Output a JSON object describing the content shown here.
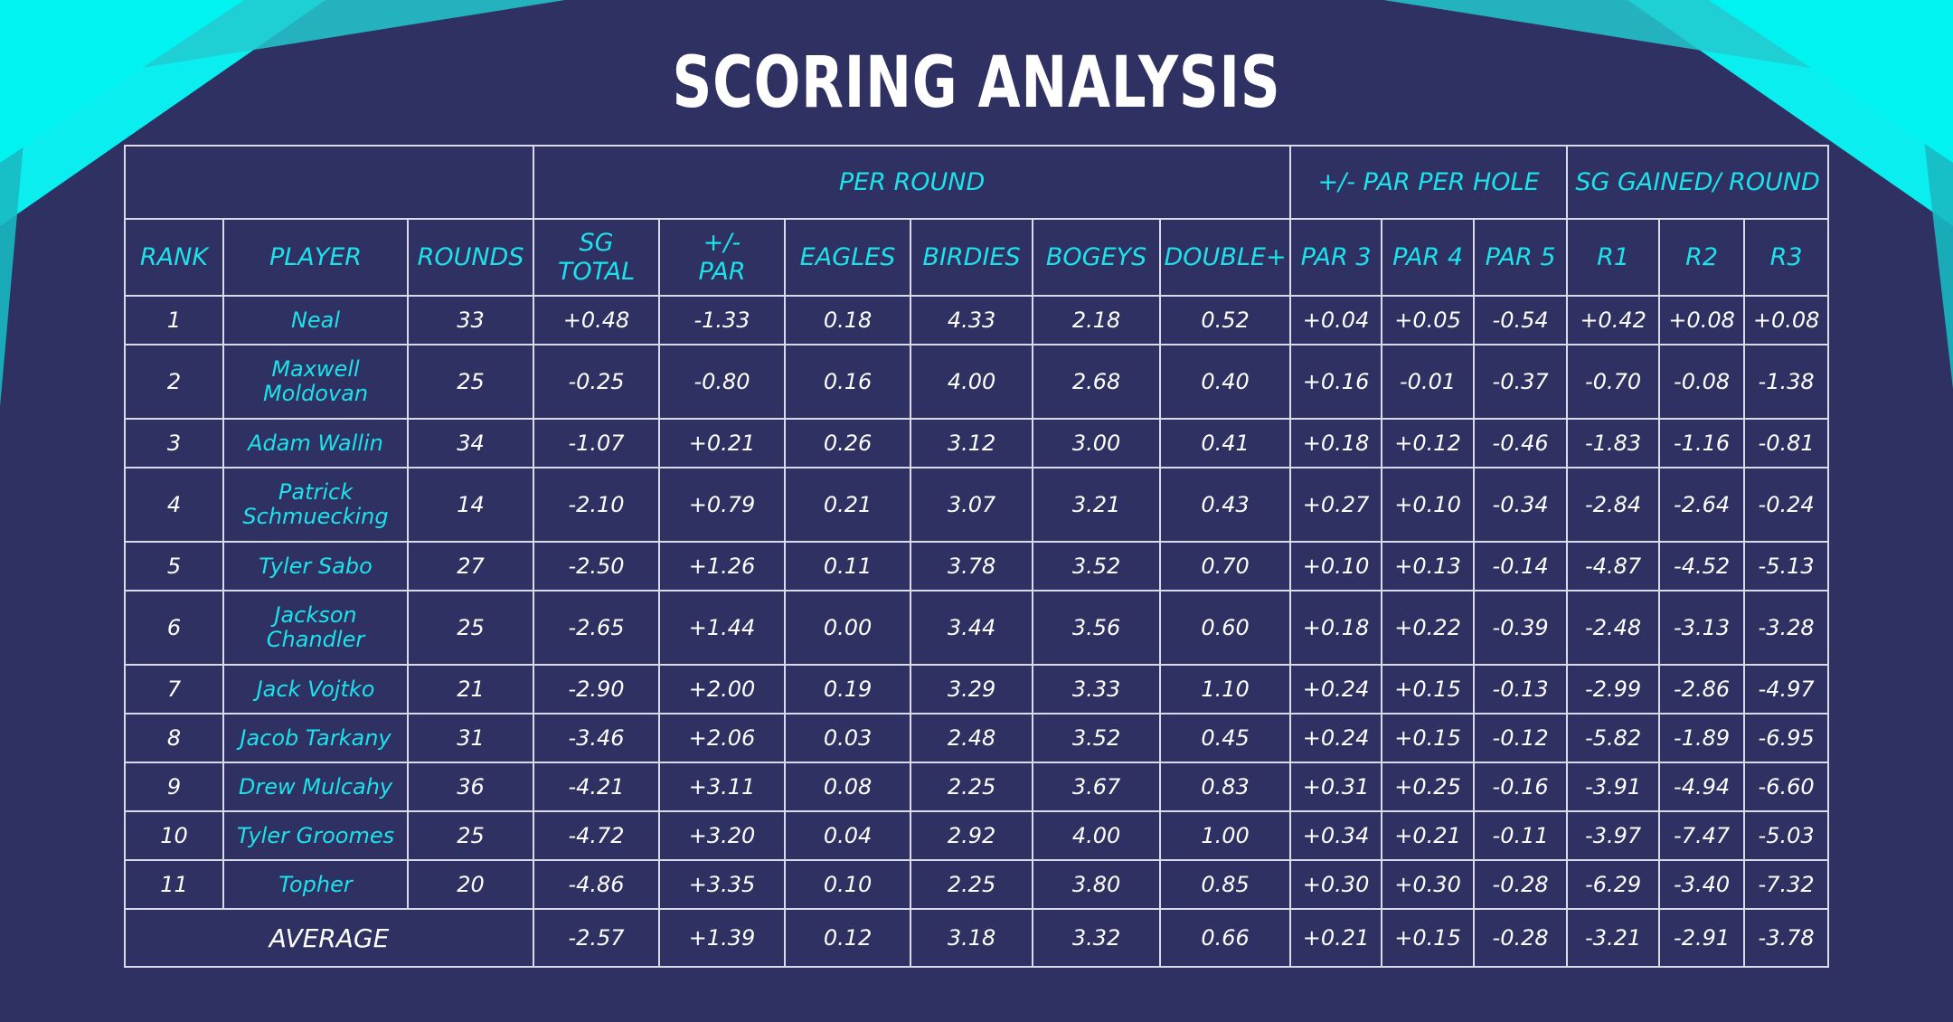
{
  "title": "SCORING ANALYSIS",
  "colors": {
    "background": "#2e3161",
    "accent": "#1ee1ec",
    "text": "#ffffff",
    "grid": "#d9dbe8"
  },
  "table": {
    "groups": {
      "per_round": "PER ROUND",
      "par_per_hole": "+/- PAR PER HOLE",
      "sg_gained_round": "SG GAINED/ ROUND"
    },
    "headers": {
      "rank": "RANK",
      "player": "PLAYER",
      "rounds": "ROUNDS",
      "sg_total_1": "SG",
      "sg_total_2": "TOTAL",
      "par_1": "+/-",
      "par_2": "PAR",
      "eagles": "EAGLES",
      "birdies": "BIRDIES",
      "bogeys": "BOGEYS",
      "double": "DOUBLE+",
      "par3": "PAR 3",
      "par4": "PAR 4",
      "par5": "PAR 5",
      "r1": "R1",
      "r2": "R2",
      "r3": "R3"
    },
    "rows": [
      {
        "rank": "1",
        "player": [
          "Neal"
        ],
        "rounds": "33",
        "sg_total": "+0.48",
        "par": "-1.33",
        "eagles": "0.18",
        "birdies": "4.33",
        "bogeys": "2.18",
        "double": "0.52",
        "par3": "+0.04",
        "par4": "+0.05",
        "par5": "-0.54",
        "r1": "+0.42",
        "r2": "+0.08",
        "r3": "+0.08"
      },
      {
        "rank": "2",
        "player": [
          "Maxwell",
          "Moldovan"
        ],
        "rounds": "25",
        "sg_total": "-0.25",
        "par": "-0.80",
        "eagles": "0.16",
        "birdies": "4.00",
        "bogeys": "2.68",
        "double": "0.40",
        "par3": "+0.16",
        "par4": "-0.01",
        "par5": "-0.37",
        "r1": "-0.70",
        "r2": "-0.08",
        "r3": "-1.38"
      },
      {
        "rank": "3",
        "player": [
          "Adam Wallin"
        ],
        "rounds": "34",
        "sg_total": "-1.07",
        "par": "+0.21",
        "eagles": "0.26",
        "birdies": "3.12",
        "bogeys": "3.00",
        "double": "0.41",
        "par3": "+0.18",
        "par4": "+0.12",
        "par5": "-0.46",
        "r1": "-1.83",
        "r2": "-1.16",
        "r3": "-0.81"
      },
      {
        "rank": "4",
        "player": [
          "Patrick",
          "Schmuecking"
        ],
        "rounds": "14",
        "sg_total": "-2.10",
        "par": "+0.79",
        "eagles": "0.21",
        "birdies": "3.07",
        "bogeys": "3.21",
        "double": "0.43",
        "par3": "+0.27",
        "par4": "+0.10",
        "par5": "-0.34",
        "r1": "-2.84",
        "r2": "-2.64",
        "r3": "-0.24"
      },
      {
        "rank": "5",
        "player": [
          "Tyler Sabo"
        ],
        "rounds": "27",
        "sg_total": "-2.50",
        "par": "+1.26",
        "eagles": "0.11",
        "birdies": "3.78",
        "bogeys": "3.52",
        "double": "0.70",
        "par3": "+0.10",
        "par4": "+0.13",
        "par5": "-0.14",
        "r1": "-4.87",
        "r2": "-4.52",
        "r3": "-5.13"
      },
      {
        "rank": "6",
        "player": [
          "Jackson",
          "Chandler"
        ],
        "rounds": "25",
        "sg_total": "-2.65",
        "par": "+1.44",
        "eagles": "0.00",
        "birdies": "3.44",
        "bogeys": "3.56",
        "double": "0.60",
        "par3": "+0.18",
        "par4": "+0.22",
        "par5": "-0.39",
        "r1": "-2.48",
        "r2": "-3.13",
        "r3": "-3.28"
      },
      {
        "rank": "7",
        "player": [
          "Jack Vojtko"
        ],
        "rounds": "21",
        "sg_total": "-2.90",
        "par": "+2.00",
        "eagles": "0.19",
        "birdies": "3.29",
        "bogeys": "3.33",
        "double": "1.10",
        "par3": "+0.24",
        "par4": "+0.15",
        "par5": "-0.13",
        "r1": "-2.99",
        "r2": "-2.86",
        "r3": "-4.97"
      },
      {
        "rank": "8",
        "player": [
          "Jacob Tarkany"
        ],
        "rounds": "31",
        "sg_total": "-3.46",
        "par": "+2.06",
        "eagles": "0.03",
        "birdies": "2.48",
        "bogeys": "3.52",
        "double": "0.45",
        "par3": "+0.24",
        "par4": "+0.15",
        "par5": "-0.12",
        "r1": "-5.82",
        "r2": "-1.89",
        "r3": "-6.95"
      },
      {
        "rank": "9",
        "player": [
          "Drew Mulcahy"
        ],
        "rounds": "36",
        "sg_total": "-4.21",
        "par": "+3.11",
        "eagles": "0.08",
        "birdies": "2.25",
        "bogeys": "3.67",
        "double": "0.83",
        "par3": "+0.31",
        "par4": "+0.25",
        "par5": "-0.16",
        "r1": "-3.91",
        "r2": "-4.94",
        "r3": "-6.60"
      },
      {
        "rank": "10",
        "player": [
          "Tyler Groomes"
        ],
        "rounds": "25",
        "sg_total": "-4.72",
        "par": "+3.20",
        "eagles": "0.04",
        "birdies": "2.92",
        "bogeys": "4.00",
        "double": "1.00",
        "par3": "+0.34",
        "par4": "+0.21",
        "par5": "-0.11",
        "r1": "-3.97",
        "r2": "-7.47",
        "r3": "-5.03"
      },
      {
        "rank": "11",
        "player": [
          "Topher"
        ],
        "rounds": "20",
        "sg_total": "-4.86",
        "par": "+3.35",
        "eagles": "0.10",
        "birdies": "2.25",
        "bogeys": "3.80",
        "double": "0.85",
        "par3": "+0.30",
        "par4": "+0.30",
        "par5": "-0.28",
        "r1": "-6.29",
        "r2": "-3.40",
        "r3": "-7.32"
      }
    ],
    "average": {
      "label": "AVERAGE",
      "sg_total": "-2.57",
      "par": "+1.39",
      "eagles": "0.12",
      "birdies": "3.18",
      "bogeys": "3.32",
      "double": "0.66",
      "par3": "+0.21",
      "par4": "+0.15",
      "par5": "-0.28",
      "r1": "-3.21",
      "r2": "-2.91",
      "r3": "-3.78"
    }
  }
}
